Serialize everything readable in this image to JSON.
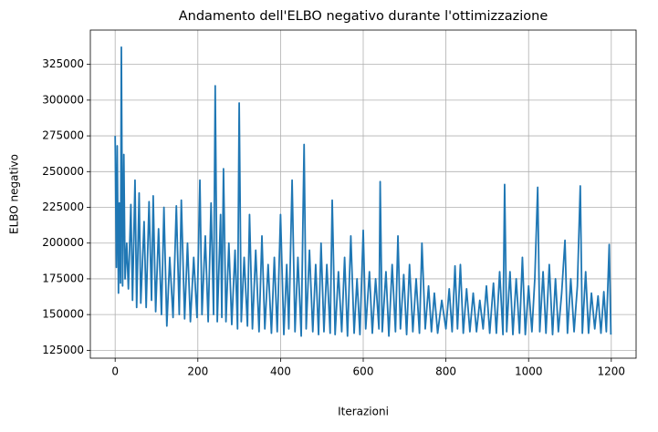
{
  "chart_data": {
    "type": "line",
    "title": "Andamento dell'ELBO negativo durante l'ottimizzazione",
    "xlabel": "Iterazioni",
    "ylabel": "ELBO negativo",
    "x": [
      0,
      3,
      5,
      8,
      10,
      13,
      15,
      18,
      21,
      24,
      28,
      32,
      38,
      42,
      48,
      52,
      58,
      62,
      70,
      75,
      82,
      88,
      92,
      98,
      105,
      112,
      118,
      125,
      132,
      140,
      148,
      155,
      160,
      168,
      175,
      182,
      190,
      198,
      205,
      210,
      218,
      225,
      232,
      238,
      242,
      247,
      255,
      258,
      262,
      268,
      275,
      282,
      290,
      296,
      300,
      305,
      312,
      320,
      325,
      332,
      340,
      348,
      355,
      362,
      370,
      378,
      385,
      392,
      400,
      408,
      415,
      420,
      428,
      435,
      442,
      450,
      457,
      462,
      470,
      478,
      485,
      492,
      498,
      505,
      512,
      520,
      525,
      532,
      540,
      548,
      555,
      562,
      570,
      578,
      585,
      592,
      600,
      606,
      615,
      622,
      630,
      638,
      641,
      646,
      655,
      662,
      670,
      678,
      684,
      690,
      698,
      705,
      712,
      720,
      728,
      736,
      742,
      750,
      758,
      765,
      772,
      780,
      790,
      800,
      808,
      815,
      822,
      828,
      835,
      842,
      850,
      858,
      866,
      874,
      882,
      890,
      898,
      906,
      915,
      922,
      930,
      938,
      942,
      947,
      955,
      962,
      970,
      978,
      985,
      992,
      1000,
      1008,
      1015,
      1022,
      1027,
      1035,
      1042,
      1050,
      1058,
      1065,
      1072,
      1080,
      1088,
      1094,
      1102,
      1110,
      1118,
      1125,
      1130,
      1138,
      1145,
      1152,
      1160,
      1168,
      1175,
      1182,
      1188,
      1195,
      1199
    ],
    "values": [
      275000,
      183000,
      268000,
      165000,
      228000,
      172000,
      337000,
      170000,
      262000,
      175000,
      200000,
      168000,
      227000,
      160000,
      244000,
      155000,
      235000,
      158000,
      215000,
      155000,
      229000,
      160000,
      233000,
      152000,
      210000,
      150000,
      225000,
      142000,
      190000,
      148000,
      226000,
      150000,
      230000,
      147000,
      200000,
      145000,
      190000,
      148000,
      244000,
      150000,
      205000,
      145000,
      228000,
      150000,
      310000,
      145000,
      220000,
      148000,
      252000,
      145000,
      200000,
      143000,
      195000,
      140000,
      298000,
      145000,
      190000,
      142000,
      220000,
      140000,
      195000,
      138000,
      205000,
      140000,
      185000,
      137000,
      190000,
      138000,
      220000,
      136000,
      185000,
      140000,
      244000,
      138000,
      190000,
      135000,
      269000,
      140000,
      195000,
      138000,
      185000,
      136000,
      200000,
      138000,
      185000,
      137000,
      230000,
      136000,
      180000,
      138000,
      190000,
      135000,
      205000,
      137000,
      175000,
      136000,
      209000,
      140000,
      180000,
      137000,
      175000,
      140000,
      243000,
      138000,
      180000,
      135000,
      185000,
      138000,
      205000,
      140000,
      178000,
      136000,
      185000,
      138000,
      175000,
      137000,
      200000,
      140000,
      170000,
      138000,
      165000,
      137000,
      160000,
      140000,
      168000,
      138000,
      184000,
      140000,
      185000,
      137000,
      168000,
      138000,
      165000,
      138000,
      160000,
      140000,
      170000,
      137000,
      172000,
      137000,
      180000,
      136000,
      241000,
      138000,
      180000,
      136000,
      175000,
      137000,
      190000,
      136000,
      170000,
      138000,
      175000,
      239000,
      138000,
      180000,
      137000,
      185000,
      136000,
      175000,
      138000,
      165000,
      202000,
      137000,
      175000,
      138000,
      170000,
      240000,
      137000,
      180000,
      137000,
      165000,
      140000,
      163000,
      137000,
      166000,
      138000,
      199000,
      136000
    ],
    "color": "#1f77b4",
    "xlim": [
      -60,
      1260
    ],
    "xticks": [
      0,
      200,
      400,
      600,
      800,
      1000,
      1200
    ],
    "ylim": [
      119500,
      349000
    ],
    "yticks": [
      125000,
      150000,
      175000,
      200000,
      225000,
      250000,
      275000,
      300000,
      325000
    ],
    "grid": true
  }
}
